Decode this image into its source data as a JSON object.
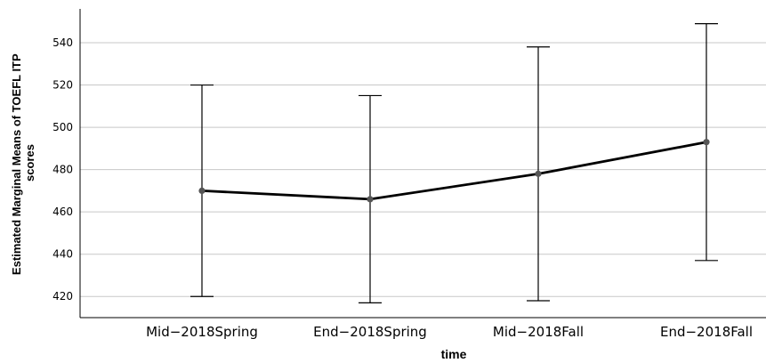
{
  "chart_data": {
    "type": "line",
    "title": "",
    "xlabel": "time",
    "ylabel_lines": [
      "Estimated Marginal Means of TOEFL ITP",
      "scores"
    ],
    "categories": [
      "Mid−2018Spring",
      "End−2018Spring",
      "Mid−2018Fall",
      "End−2018Fall"
    ],
    "series": [
      {
        "values": [
          470,
          466,
          478,
          493
        ],
        "error_low": [
          420,
          417,
          418,
          437
        ],
        "error_high": [
          520,
          515,
          538,
          549
        ]
      }
    ],
    "yticks": [
      "420",
      "440",
      "460",
      "480",
      "500",
      "520",
      "540"
    ],
    "ylim": [
      410,
      556
    ],
    "grid": true,
    "colors": {
      "line": "#000000",
      "marker": "#555555",
      "grid": "#c8c8c8",
      "axis": "#000000",
      "error_bar": "#000000"
    }
  }
}
